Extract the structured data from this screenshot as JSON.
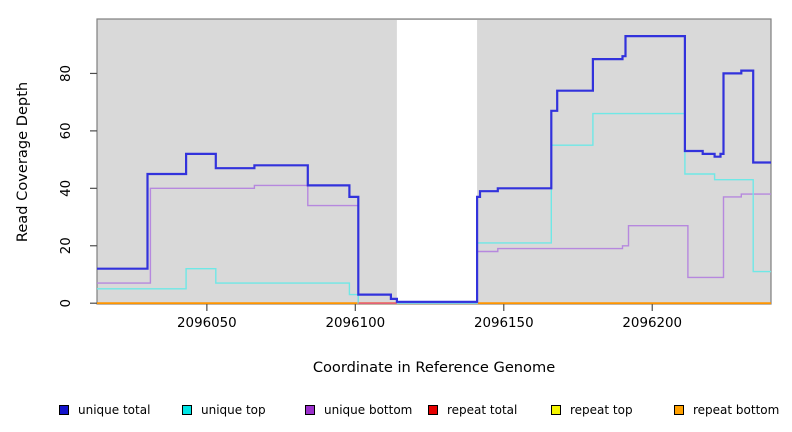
{
  "chart_data": {
    "type": "line",
    "subtype": "step-coverage",
    "title": "",
    "xlabel": "Coordinate in Reference Genome",
    "ylabel": "Read Coverage Depth",
    "xlim": [
      2096013,
      2096240
    ],
    "ylim": [
      0,
      99
    ],
    "x_ticks": [
      2096050,
      2096100,
      2096150,
      2096200
    ],
    "y_ticks": [
      0,
      20,
      40,
      60,
      80
    ],
    "grid": false,
    "plot_background": "#d9d9d9",
    "no_data_region": {
      "x1": 2096114,
      "x2": 2096141,
      "fill": "#ffffff"
    },
    "legend_position": "bottom",
    "series": [
      {
        "name": "repeat top",
        "color": "#f0f000",
        "width": 1.4,
        "steps": [
          [
            2096013,
            0
          ]
        ]
      },
      {
        "name": "repeat total",
        "color": "#e60000",
        "width": 1.4,
        "steps": [
          [
            2096013,
            0
          ]
        ]
      },
      {
        "name": "repeat bottom",
        "color": "#ff9500",
        "width": 1.8,
        "steps": [
          [
            2096013,
            0
          ]
        ]
      },
      {
        "name": "unique bottom",
        "color": "#b688de",
        "width": 1.4,
        "steps": [
          [
            2096013,
            7
          ],
          [
            2096031,
            40
          ],
          [
            2096066,
            41
          ],
          [
            2096084,
            34
          ],
          [
            2096101,
            0
          ],
          [
            2096141,
            18
          ],
          [
            2096148,
            19
          ],
          [
            2096190,
            20
          ],
          [
            2096192,
            27
          ],
          [
            2096212,
            9
          ],
          [
            2096224,
            37
          ],
          [
            2096230,
            38
          ]
        ]
      },
      {
        "name": "unique top",
        "color": "#6fe8e6",
        "width": 1.4,
        "steps": [
          [
            2096013,
            5
          ],
          [
            2096043,
            12
          ],
          [
            2096053,
            7
          ],
          [
            2096098,
            3
          ],
          [
            2096101,
            0
          ],
          [
            2096141,
            21
          ],
          [
            2096166,
            55
          ],
          [
            2096180,
            66
          ],
          [
            2096211,
            45
          ],
          [
            2096221,
            43
          ],
          [
            2096234,
            11
          ]
        ]
      },
      {
        "name": "unique total",
        "color": "#3232dc",
        "width": 2.2,
        "steps": [
          [
            2096013,
            12
          ],
          [
            2096030,
            45
          ],
          [
            2096043,
            52
          ],
          [
            2096053,
            47
          ],
          [
            2096066,
            48
          ],
          [
            2096084,
            41
          ],
          [
            2096098,
            37
          ],
          [
            2096101,
            3
          ],
          [
            2096112,
            1.5
          ],
          [
            2096114,
            0.5
          ],
          [
            2096141,
            37
          ],
          [
            2096142,
            39
          ],
          [
            2096148,
            40
          ],
          [
            2096166,
            67
          ],
          [
            2096168,
            74
          ],
          [
            2096180,
            85
          ],
          [
            2096190,
            86
          ],
          [
            2096191,
            93
          ],
          [
            2096211,
            53
          ],
          [
            2096217,
            52
          ],
          [
            2096221,
            51
          ],
          [
            2096223,
            52
          ],
          [
            2096224,
            80
          ],
          [
            2096230,
            81
          ],
          [
            2096234,
            49
          ]
        ]
      }
    ],
    "baseline_overlays": [
      {
        "x1": 2096101,
        "x2": 2096114,
        "value": 0,
        "color": "#e2607a",
        "width": 1.6
      },
      {
        "x1": 2096114,
        "x2": 2096141,
        "value": 0.3,
        "color": "#7b72ea",
        "width": 1.6
      }
    ]
  },
  "legend": {
    "items": [
      {
        "label": "unique total",
        "swatch_color": "#1414cc"
      },
      {
        "label": "unique top",
        "swatch_color": "#00e5e5"
      },
      {
        "label": "unique bottom",
        "swatch_color": "#9b30cc"
      },
      {
        "label": "repeat total",
        "swatch_color": "#e60000"
      },
      {
        "label": "repeat top",
        "swatch_color": "#f5f500"
      },
      {
        "label": "repeat bottom",
        "swatch_color": "#ffa000"
      }
    ]
  },
  "colors": {
    "plot_background": "#d9d9d9",
    "box_border": "#7f7f7f",
    "tick_color": "#4d4d4d",
    "text_color": "#000000"
  }
}
